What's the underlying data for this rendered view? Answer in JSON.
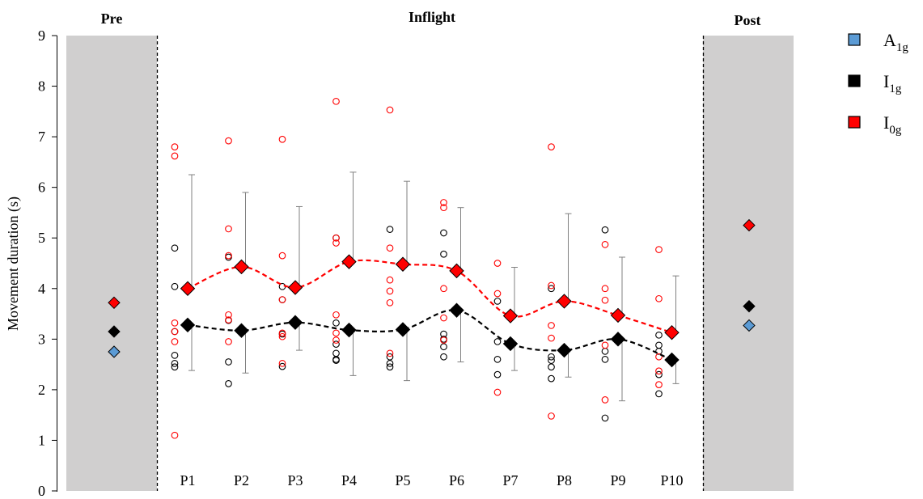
{
  "chart_data": {
    "type": "scatter",
    "ylabel": "Movement duration (s)",
    "ylim": [
      0,
      9
    ],
    "yticks": [
      0,
      1,
      2,
      3,
      4,
      5,
      6,
      7,
      8,
      9
    ],
    "grid": false,
    "legend_placement": "right",
    "phases": [
      "Pre",
      "Inflight",
      "Post"
    ],
    "categories": [
      "P1",
      "P2",
      "P3",
      "P4",
      "P5",
      "P6",
      "P7",
      "P8",
      "P9",
      "P10"
    ],
    "legend": [
      {
        "key": "A",
        "sub": "1g",
        "color": "#5b9bd5"
      },
      {
        "key": "I",
        "sub": "1g",
        "color": "#000000"
      },
      {
        "key": "I",
        "sub": "0g",
        "color": "#ff0000"
      }
    ],
    "series": [
      {
        "color": "#5b9bd5",
        "pre": 2.75,
        "post": 3.27
      },
      {
        "color": "#000000",
        "pre": 3.15,
        "post": 3.65,
        "means": [
          3.28,
          3.17,
          3.33,
          3.18,
          3.19,
          3.57,
          2.91,
          2.78,
          3.0,
          2.59
        ],
        "err_low": [
          2.38,
          2.33,
          2.78,
          2.28,
          2.18,
          2.55,
          2.38,
          2.25,
          1.78,
          2.12
        ],
        "err_high": [
          3.28,
          3.17,
          3.33,
          3.18,
          3.19,
          3.57,
          2.91,
          2.78,
          3.0,
          2.59
        ],
        "individual": [
          [
            4.8,
            4.04,
            3.15,
            2.68,
            2.52,
            2.45
          ],
          [
            4.62,
            3.37,
            2.55,
            2.12
          ],
          [
            4.04,
            3.78,
            3.1,
            2.46
          ],
          [
            5.0,
            3.32,
            2.9,
            2.72,
            2.6,
            2.58
          ],
          [
            5.17,
            2.65,
            2.52,
            2.45
          ],
          [
            5.1,
            4.68,
            3.1,
            3.0,
            2.85,
            2.65
          ],
          [
            3.75,
            2.95,
            2.6,
            2.3
          ],
          [
            4.0,
            2.65,
            2.58,
            2.45,
            2.22
          ],
          [
            5.16,
            2.76,
            2.6,
            1.44
          ],
          [
            3.08,
            2.88,
            2.76,
            2.3,
            1.92
          ]
        ]
      },
      {
        "color": "#ff0000",
        "pre": 3.72,
        "post": 5.25,
        "means": [
          4.0,
          4.43,
          4.02,
          4.53,
          4.48,
          4.35,
          3.46,
          3.75,
          3.47,
          3.13
        ],
        "err_low": [
          4.0,
          4.43,
          4.02,
          4.53,
          4.48,
          4.35,
          3.46,
          3.75,
          3.47,
          3.13
        ],
        "err_high": [
          6.25,
          5.9,
          5.62,
          6.3,
          6.12,
          5.6,
          4.42,
          5.48,
          4.62,
          4.25
        ],
        "individual": [
          [
            6.8,
            6.62,
            3.32,
            3.15,
            2.95,
            1.1
          ],
          [
            6.92,
            5.18,
            4.65,
            3.48,
            3.38,
            2.95
          ],
          [
            6.95,
            4.65,
            3.78,
            3.12,
            3.05,
            2.52
          ],
          [
            7.7,
            5.0,
            4.9,
            3.48,
            3.12,
            2.98
          ],
          [
            7.53,
            4.8,
            4.17,
            3.95,
            3.72,
            2.72
          ],
          [
            5.7,
            5.6,
            4.0,
            3.42,
            2.98
          ],
          [
            4.5,
            3.9,
            1.95
          ],
          [
            6.8,
            4.06,
            3.27,
            3.02,
            1.48
          ],
          [
            4.87,
            4.0,
            3.77,
            2.88,
            1.8
          ],
          [
            4.77,
            3.8,
            2.65,
            2.37,
            2.1
          ]
        ]
      }
    ]
  }
}
